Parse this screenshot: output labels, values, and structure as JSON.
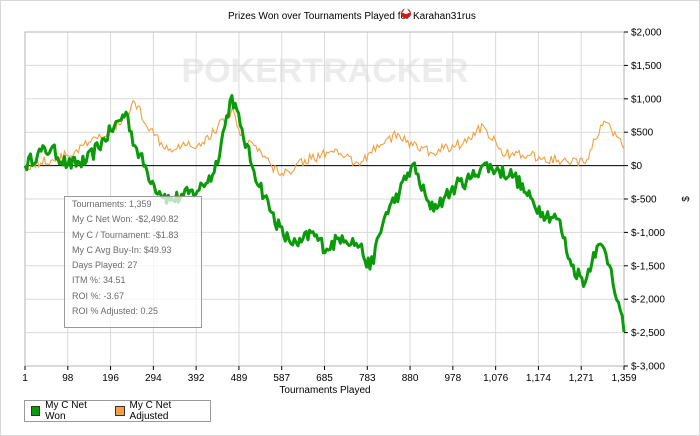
{
  "chart_data": {
    "type": "line",
    "title": "Prizes Won over Tournaments Played for",
    "title_icon": "poker-spade-icon",
    "player": "Karahan31rus",
    "watermark": "POKERTRACKER",
    "xlabel": "Tournaments Played",
    "ylabel": "$",
    "xlim": [
      1,
      1359
    ],
    "ylim": [
      -3000,
      2000
    ],
    "x_ticks": [
      "1",
      "98",
      "196",
      "294",
      "392",
      "489",
      "587",
      "685",
      "783",
      "880",
      "978",
      "1,076",
      "1,174",
      "1,271",
      "1,359"
    ],
    "y_ticks": [
      "$2,000",
      "$1,500",
      "$1,000",
      "$500",
      "$0",
      "$-500",
      "$-1,000",
      "$-1,500",
      "$-2,000",
      "$-2,500",
      "$-3,000"
    ],
    "y_tick_values": [
      2000,
      1500,
      1000,
      500,
      0,
      -500,
      -1000,
      -1500,
      -2000,
      -2500,
      -3000
    ],
    "grid": true,
    "series": [
      {
        "name": "My C Net Won",
        "color": "#0a9a0a",
        "x": [
          1,
          30,
          60,
          98,
          140,
          196,
          230,
          250,
          294,
          330,
          360,
          392,
          430,
          470,
          489,
          520,
          560,
          587,
          620,
          650,
          685,
          720,
          760,
          783,
          820,
          850,
          880,
          920,
          950,
          978,
          1010,
          1040,
          1076,
          1110,
          1140,
          1174,
          1210,
          1240,
          1271,
          1290,
          1310,
          1330,
          1359
        ],
        "values": [
          0,
          180,
          250,
          10,
          60,
          520,
          800,
          300,
          -300,
          -520,
          -450,
          -380,
          -100,
          1050,
          600,
          -80,
          -700,
          -1050,
          -1200,
          -1000,
          -1250,
          -1050,
          -1200,
          -1550,
          -700,
          -400,
          20,
          -650,
          -500,
          -300,
          -200,
          10,
          -80,
          -150,
          -450,
          -700,
          -800,
          -1500,
          -1750,
          -1300,
          -1200,
          -1550,
          -2490
        ]
      },
      {
        "name": "My C Net Adjusted",
        "color": "#f0a040",
        "x": [
          1,
          60,
          98,
          150,
          196,
          230,
          250,
          294,
          330,
          360,
          392,
          430,
          470,
          489,
          520,
          560,
          587,
          620,
          650,
          685,
          720,
          760,
          783,
          820,
          850,
          880,
          920,
          950,
          978,
          1010,
          1040,
          1076,
          1110,
          1140,
          1174,
          1210,
          1240,
          1271,
          1290,
          1310,
          1330,
          1359
        ],
        "values": [
          0,
          80,
          150,
          350,
          500,
          750,
          950,
          450,
          250,
          350,
          300,
          500,
          850,
          450,
          300,
          0,
          -150,
          50,
          100,
          200,
          150,
          0,
          200,
          400,
          450,
          300,
          200,
          250,
          300,
          400,
          600,
          250,
          150,
          150,
          100,
          80,
          50,
          30,
          400,
          600,
          550,
          250
        ]
      }
    ],
    "legend": {
      "placement": "bottom-left",
      "entries": [
        "My C Net Won",
        "My C Net Adjusted"
      ]
    },
    "tooltip": {
      "lines": [
        "Tournaments: 1,359",
        "My C Net Won: -$2,490.82",
        "My C / Tournament: -$1.83",
        "My C Avg Buy-In: $49.93",
        "Days Played: 27",
        "ITM %: 34.51",
        "ROI %: -3.67",
        "ROI % Adjusted: 0.25"
      ]
    },
    "colors": {
      "grid": "#d9d9d9",
      "zero_line": "#000000",
      "watermark": "#ececec",
      "watermark_accent": "#e8e8e8"
    }
  }
}
